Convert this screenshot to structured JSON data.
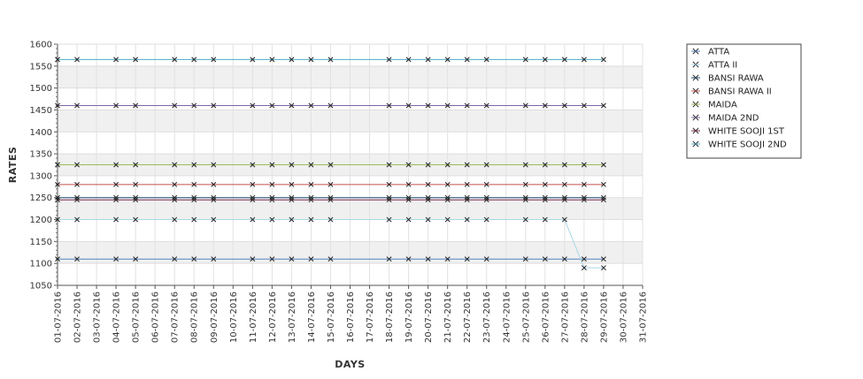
{
  "chart_data": {
    "type": "line",
    "xlabel": "DAYS",
    "ylabel": "RATES",
    "ylim": [
      1050,
      1600
    ],
    "yticks": [
      1050,
      1100,
      1150,
      1200,
      1250,
      1300,
      1350,
      1400,
      1450,
      1500,
      1550,
      1600
    ],
    "x_ticks": [
      "01-07-2016",
      "02-07-2016",
      "03-07-2016",
      "04-07-2016",
      "05-07-2016",
      "06-07-2016",
      "07-07-2016",
      "08-07-2016",
      "09-07-2016",
      "10-07-2016",
      "11-07-2016",
      "12-07-2016",
      "13-07-2016",
      "14-07-2016",
      "15-07-2016",
      "16-07-2016",
      "17-07-2016",
      "18-07-2016",
      "19-07-2016",
      "20-07-2016",
      "21-07-2016",
      "22-07-2016",
      "23-07-2016",
      "24-07-2016",
      "25-07-2016",
      "26-07-2016",
      "27-07-2016",
      "28-07-2016",
      "29-07-2016",
      "30-07-2016",
      "31-07-2016"
    ],
    "x": [
      "01-07-2016",
      "02-07-2016",
      "04-07-2016",
      "05-07-2016",
      "07-07-2016",
      "08-07-2016",
      "09-07-2016",
      "11-07-2016",
      "12-07-2016",
      "13-07-2016",
      "14-07-2016",
      "15-07-2016",
      "18-07-2016",
      "19-07-2016",
      "20-07-2016",
      "21-07-2016",
      "22-07-2016",
      "23-07-2016",
      "25-07-2016",
      "26-07-2016",
      "27-07-2016",
      "28-07-2016",
      "29-07-2016"
    ],
    "grid": true,
    "legend_position": "right",
    "series": [
      {
        "name": "ATTA",
        "color": "#4f81bd",
        "values": [
          1110,
          1110,
          1110,
          1110,
          1110,
          1110,
          1110,
          1110,
          1110,
          1110,
          1110,
          1110,
          1110,
          1110,
          1110,
          1110,
          1110,
          1110,
          1110,
          1110,
          1110,
          1110,
          1110
        ]
      },
      {
        "name": "ATTA II",
        "color": "#a8d8e8",
        "values": [
          1200,
          1200,
          1200,
          1200,
          1200,
          1200,
          1200,
          1200,
          1200,
          1200,
          1200,
          1200,
          1200,
          1200,
          1200,
          1200,
          1200,
          1200,
          1200,
          1200,
          1200,
          1090,
          1090
        ]
      },
      {
        "name": "BANSI RAWA",
        "color": "#1f4e79",
        "values": [
          1250,
          1250,
          1250,
          1250,
          1250,
          1250,
          1250,
          1250,
          1250,
          1250,
          1250,
          1250,
          1250,
          1250,
          1250,
          1250,
          1250,
          1250,
          1250,
          1250,
          1250,
          1250,
          1250
        ]
      },
      {
        "name": "BANSI RAWA II",
        "color": "#c0504d",
        "values": [
          1280,
          1280,
          1280,
          1280,
          1280,
          1280,
          1280,
          1280,
          1280,
          1280,
          1280,
          1280,
          1280,
          1280,
          1280,
          1280,
          1280,
          1280,
          1280,
          1280,
          1280,
          1280,
          1280
        ]
      },
      {
        "name": "MAIDA",
        "color": "#9bbb59",
        "values": [
          1325,
          1325,
          1325,
          1325,
          1325,
          1325,
          1325,
          1325,
          1325,
          1325,
          1325,
          1325,
          1325,
          1325,
          1325,
          1325,
          1325,
          1325,
          1325,
          1325,
          1325,
          1325,
          1325
        ]
      },
      {
        "name": "MAIDA 2ND",
        "color": "#8064a2",
        "values": [
          1460,
          1460,
          1460,
          1460,
          1460,
          1460,
          1460,
          1460,
          1460,
          1460,
          1460,
          1460,
          1460,
          1460,
          1460,
          1460,
          1460,
          1460,
          1460,
          1460,
          1460,
          1460,
          1460
        ]
      },
      {
        "name": "WHITE SOOJI 1ST",
        "color": "#7b2c4f",
        "values": [
          1245,
          1245,
          1245,
          1245,
          1245,
          1245,
          1245,
          1245,
          1245,
          1245,
          1245,
          1245,
          1245,
          1245,
          1245,
          1245,
          1245,
          1245,
          1245,
          1245,
          1245,
          1245,
          1245
        ]
      },
      {
        "name": "WHITE SOOJI 2ND",
        "color": "#4bacc6",
        "values": [
          1565,
          1565,
          1565,
          1565,
          1565,
          1565,
          1565,
          1565,
          1565,
          1565,
          1565,
          1565,
          1565,
          1565,
          1565,
          1565,
          1565,
          1565,
          1565,
          1565,
          1565,
          1565,
          1565
        ]
      }
    ]
  }
}
